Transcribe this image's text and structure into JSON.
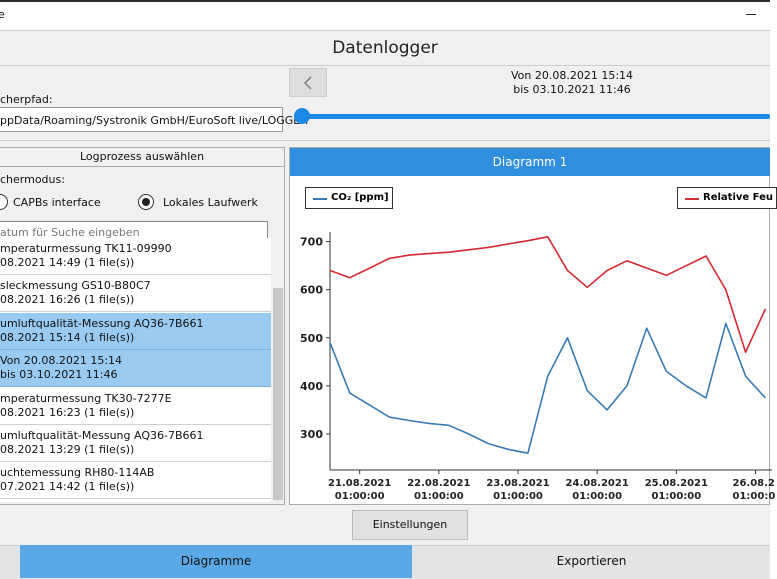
{
  "window": {
    "app_fragment": "e",
    "title": "Datenlogger"
  },
  "path": {
    "label": "cherpfad:",
    "value": "ppData/Roaming/Systronik GmbH/EuroSoft live/LOGGER"
  },
  "range": {
    "from": "Von 20.08.2021 15:14",
    "to": "bis 03.10.2021 11:46"
  },
  "log_panel": {
    "title": "Logprozess auswählen",
    "mode_label": "chermodus:",
    "options": [
      "CAPBs interface",
      "Lokales Laufwerk"
    ],
    "selected_option": 1,
    "search_placeholder": "atum für Suche eingeben",
    "items": [
      {
        "title": "mperaturmessung TK11-09990",
        "detail": "08.2021 14:49 (1 file(s))",
        "selected": false
      },
      {
        "title": "sleckmessung GS10-B80C7",
        "detail": "08.2021 16:26 (1 file(s))",
        "selected": false
      },
      {
        "title": "umluftqualität-Messung AQ36-7B661",
        "detail": "08.2021 15:14 (1 file(s))",
        "selected": true
      },
      {
        "title": "Von 20.08.2021 15:14",
        "detail": "bis 03.10.2021 11:46",
        "selected": true
      },
      {
        "title": "mperaturmessung TK30-7277E",
        "detail": "08.2021 16:23 (1 file(s))",
        "selected": false
      },
      {
        "title": "umluftqualität-Messung AQ36-7B661",
        "detail": "08.2021 13:29 (1 file(s))",
        "selected": false
      },
      {
        "title": "uchtemessung RH80-114AB",
        "detail": "07.2021 14:42 (1 file(s))",
        "selected": false
      }
    ]
  },
  "chart_panel": {
    "title": "Diagramm 1"
  },
  "chart_data": {
    "type": "line",
    "x": [
      "2021-08-20 16:00",
      "2021-08-20 22:00",
      "2021-08-21 04:00",
      "2021-08-21 10:00",
      "2021-08-21 16:00",
      "2021-08-21 22:00",
      "2021-08-22 04:00",
      "2021-08-22 10:00",
      "2021-08-22 16:00",
      "2021-08-22 22:00",
      "2021-08-23 04:00",
      "2021-08-23 10:00",
      "2021-08-23 16:00",
      "2021-08-23 22:00",
      "2021-08-24 04:00",
      "2021-08-24 10:00",
      "2021-08-24 16:00",
      "2021-08-24 22:00",
      "2021-08-25 04:00",
      "2021-08-25 10:00",
      "2021-08-25 16:00",
      "2021-08-25 22:00",
      "2021-08-26 04:00"
    ],
    "series": [
      {
        "name": "CO₂ [ppm]",
        "color": "#3a7ab4",
        "values": [
          490,
          385,
          360,
          335,
          328,
          322,
          318,
          300,
          280,
          268,
          260,
          420,
          500,
          390,
          350,
          400,
          520,
          430,
          400,
          375,
          530,
          420,
          375
        ]
      },
      {
        "name": "Relative Feu",
        "color": "#d42a30",
        "values": [
          640,
          625,
          645,
          665,
          672,
          675,
          678,
          683,
          688,
          695,
          702,
          710,
          640,
          605,
          640,
          660,
          645,
          630,
          650,
          670,
          600,
          470,
          560
        ]
      }
    ],
    "xlim": [
      "2021-08-20 16:00",
      "2021-08-26 06:00"
    ],
    "xticks": [
      {
        "value": "2021-08-21 01:00",
        "label": "21.08.2021\n01:00:00"
      },
      {
        "value": "2021-08-22 01:00",
        "label": "22.08.2021\n01:00:00"
      },
      {
        "value": "2021-08-23 01:00",
        "label": "23.08.2021\n01:00:00"
      },
      {
        "value": "2021-08-24 01:00",
        "label": "24.08.2021\n01:00:00"
      },
      {
        "value": "2021-08-25 01:00",
        "label": "25.08.2021\n01:00:00"
      },
      {
        "value": "2021-08-26 01:00",
        "label": "26.08.2\n01:00:0"
      }
    ],
    "ylim": [
      225,
      720
    ],
    "yticks": [
      300,
      400,
      500,
      600,
      700
    ]
  },
  "buttons": {
    "settings": "Einstellungen"
  },
  "tabs": [
    "Diagramme",
    "Exportieren"
  ]
}
